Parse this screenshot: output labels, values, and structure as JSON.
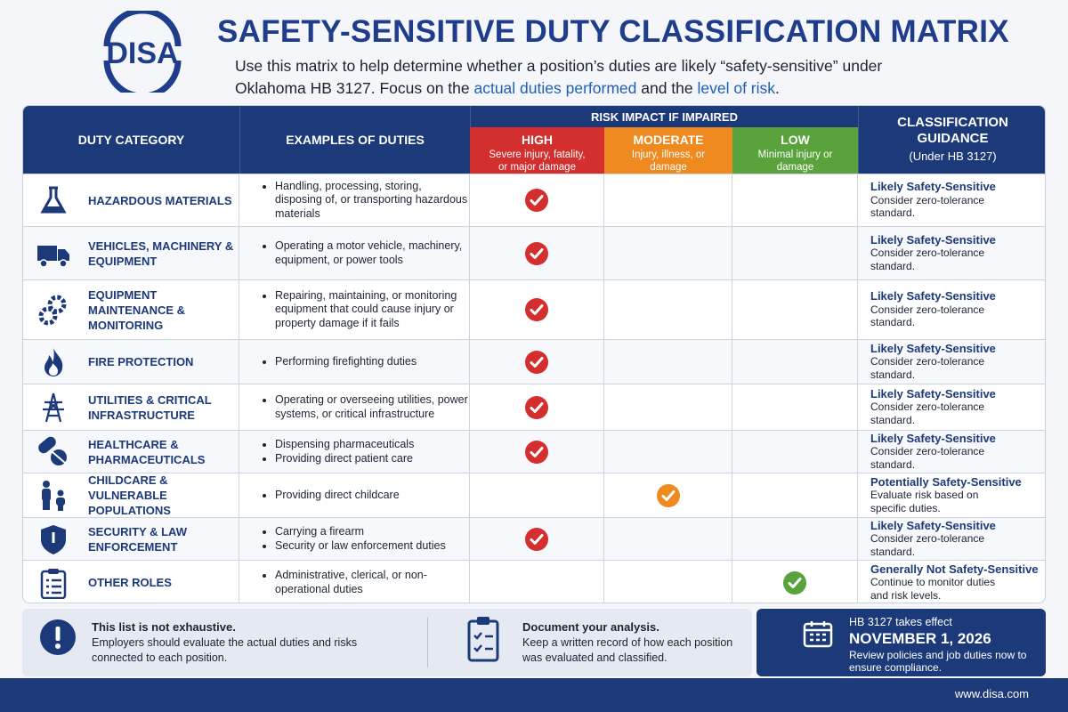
{
  "header": {
    "logo": "DISA",
    "title": "SAFETY-SENSITIVE DUTY CLASSIFICATION MATRIX",
    "intro": [
      "Use this matrix to help determine whether a position’s duties are likely “safety-sensitive” under Oklahoma HB 3127. Focus on the ",
      "actual duties performed",
      " and the ",
      "level of risk",
      "."
    ]
  },
  "table": {
    "headers": {
      "category": "DUTY CATEGORY",
      "examples": "EXAMPLES OF DUTIES",
      "risk": "RISK IMPACT IF IMPAIRED",
      "levels": [
        {
          "key": "high",
          "label": "HIGH",
          "desc": "Severe injury, fatality, or major damage"
        },
        {
          "key": "moderate",
          "label": "MODERATE",
          "desc": "Injury, illness, or damage"
        },
        {
          "key": "low",
          "label": "LOW",
          "desc": "Minimal injury or damage"
        }
      ],
      "guidance": "CLASSIFICATION GUIDANCE",
      "guidance_sub": "(Under HB 3127)"
    },
    "rows": [
      {
        "category": "HAZARDOUS MATERIALS",
        "examples": [
          "Handling, processing, storing, disposing of, or transporting hazardous materials"
        ],
        "risk": "high",
        "guidance": "Likely Safety-Sensitive",
        "note": "Consider zero-tolerance standard."
      },
      {
        "category": "VEHICLES, MACHINERY & EQUIPMENT",
        "examples": [
          "Operating a motor vehicle, machinery, equipment, or power tools"
        ],
        "risk": "high",
        "guidance": "Likely Safety-Sensitive",
        "note": "Consider zero-tolerance standard."
      },
      {
        "category": "EQUIPMENT MAINTENANCE & MONITORING",
        "examples": [
          "Repairing, maintaining, or monitoring equipment that could cause injury or property damage if it fails"
        ],
        "risk": "high",
        "guidance": "Likely Safety-Sensitive",
        "note": "Consider zero-tolerance standard."
      },
      {
        "category": "FIRE PROTECTION",
        "examples": [
          "Performing firefighting duties"
        ],
        "risk": "high",
        "guidance": "Likely Safety-Sensitive",
        "note": "Consider zero-tolerance standard."
      },
      {
        "category": "UTILITIES & CRITICAL INFRASTRUCTURE",
        "examples": [
          "Operating or overseeing utilities, power systems, or critical infrastructure"
        ],
        "risk": "high",
        "guidance": "Likely Safety-Sensitive",
        "note": "Consider zero-tolerance standard."
      },
      {
        "category": "HEALTHCARE & PHARMACEUTICALS",
        "examples": [
          "Dispensing pharmaceuticals",
          "Providing direct patient care"
        ],
        "risk": "high",
        "guidance": "Likely Safety-Sensitive",
        "note": "Consider zero-tolerance standard."
      },
      {
        "category": "CHILDCARE & VULNERABLE POPULATIONS",
        "examples": [
          "Providing direct childcare"
        ],
        "risk": "moderate",
        "guidance": "Potentially Safety-Sensitive",
        "note": "Evaluate risk based on specific duties."
      },
      {
        "category": "SECURITY & LAW ENFORCEMENT",
        "examples": [
          "Carrying a firearm",
          "Security or law enforcement duties"
        ],
        "risk": "high",
        "guidance": "Likely Safety-Sensitive",
        "note": "Consider zero-tolerance standard."
      },
      {
        "category": "OTHER ROLES",
        "examples": [
          "Administrative, clerical, or non-operational duties"
        ],
        "risk": "low",
        "guidance": "Generally Not Safety-Sensitive",
        "note": "Continue to monitor duties and risk levels."
      }
    ]
  },
  "footer": {
    "notes": [
      {
        "title": "This list is not exhaustive.",
        "text": "Employers should evaluate the actual duties and risks connected to each position."
      },
      {
        "title": "Document your analysis.",
        "text": "Keep a written record of how each position was evaluated and classified."
      }
    ],
    "effective": {
      "lead": "HB 3127 takes effect",
      "date": "NOVEMBER 1, 2026",
      "text": "Review policies and job duties now to ensure compliance."
    },
    "url": "www.disa.com"
  }
}
